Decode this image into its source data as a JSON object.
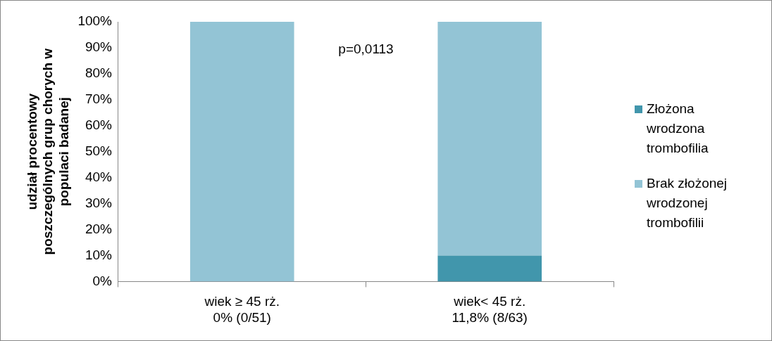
{
  "chart_data": {
    "type": "bar",
    "stacked": true,
    "ylabel": "udział procentowy poszczególnych grup chorych w populaci badanej",
    "categories": [
      "wiek ≥ 45 rż.\n0% (0/51)",
      "wiek< 45 rż.\n11,8% (8/63)"
    ],
    "series": [
      {
        "name": "Złożona wrodzona trombofilia",
        "color": "#4196ac",
        "values": [
          0,
          10
        ]
      },
      {
        "name": "Brak złożonej wrodzonej trombofilii",
        "color": "#93c4d5",
        "values": [
          100,
          90
        ]
      }
    ],
    "ylim": [
      0,
      100
    ],
    "yticks": [
      {
        "value": 0,
        "label": "0%"
      },
      {
        "value": 10,
        "label": "10%"
      },
      {
        "value": 20,
        "label": "20%"
      },
      {
        "value": 30,
        "label": "30%"
      },
      {
        "value": 40,
        "label": "40%"
      },
      {
        "value": 50,
        "label": "50%"
      },
      {
        "value": 60,
        "label": "60%"
      },
      {
        "value": 70,
        "label": "70%"
      },
      {
        "value": 80,
        "label": "80%"
      },
      {
        "value": 90,
        "label": "90%"
      },
      {
        "value": 100,
        "label": "100%"
      }
    ],
    "grid": false,
    "legend": "right",
    "annotations": [
      "p=0,0113"
    ]
  }
}
